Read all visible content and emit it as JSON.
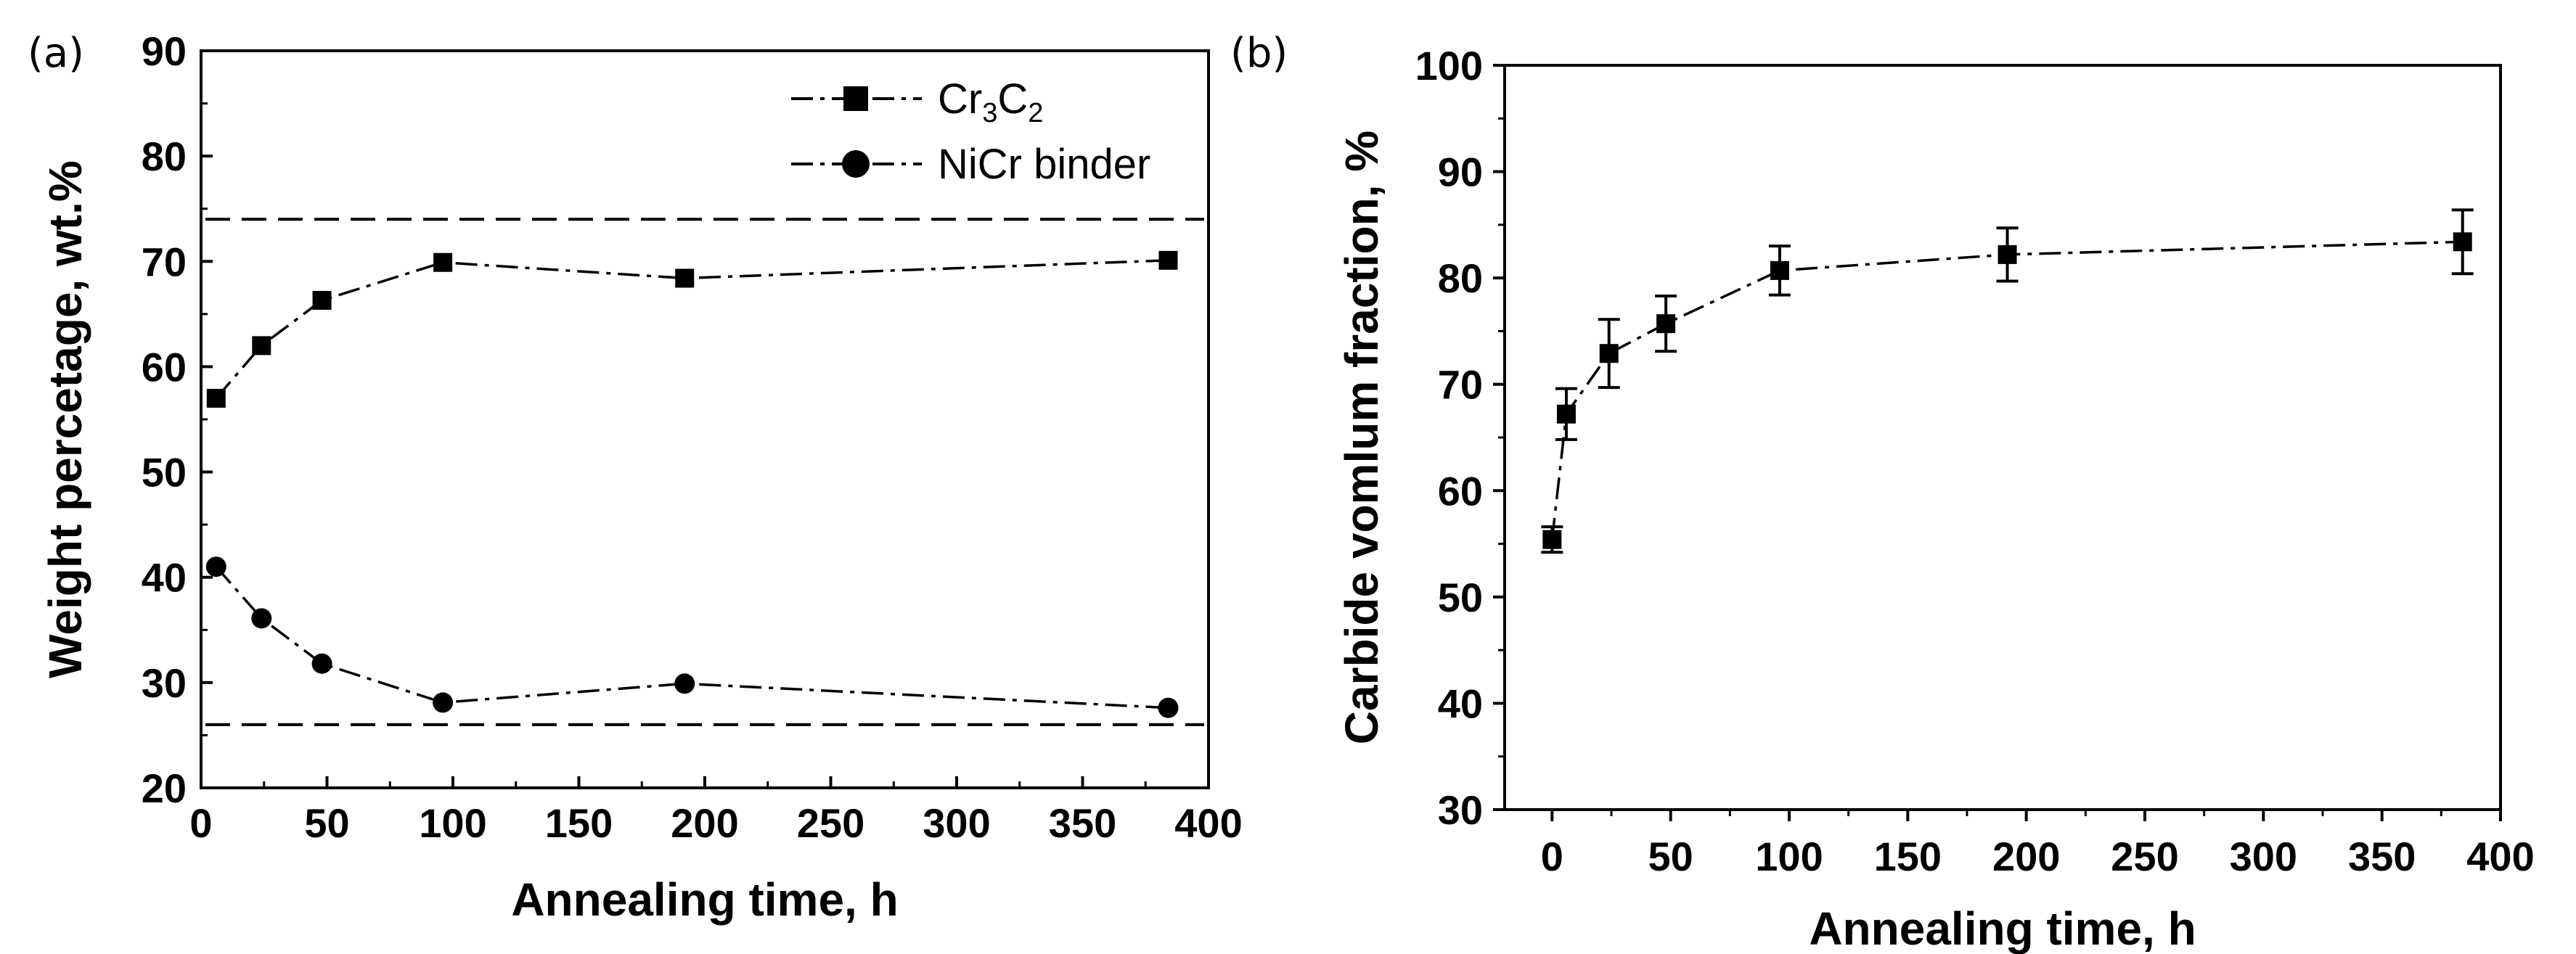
{
  "chart_data": [
    {
      "type": "line",
      "panel_label": "(a)",
      "title": "",
      "xlabel": "Annealing time, h",
      "ylabel": "Weight percetage, wt.%",
      "xlim": [
        0,
        400
      ],
      "ylim": [
        20,
        90
      ],
      "xticks": [
        0,
        50,
        100,
        150,
        200,
        250,
        300,
        350,
        400
      ],
      "yticks": [
        20,
        30,
        40,
        50,
        60,
        70,
        80,
        90
      ],
      "legend_position": "top-right",
      "series": [
        {
          "name": "Cr3C2",
          "legend_main": "Cr",
          "legend_sub1": "3",
          "legend_mid": "C",
          "legend_sub2": "2",
          "marker": "square",
          "line": "dash-dot",
          "x": [
            6,
            24,
            48,
            96,
            192,
            384
          ],
          "y": [
            57,
            62,
            66.3,
            69.9,
            68.4,
            70.1
          ]
        },
        {
          "name": "NiCr binder",
          "marker": "circle",
          "line": "dash-dot",
          "x": [
            6,
            24,
            48,
            96,
            192,
            384
          ],
          "y": [
            41,
            36.1,
            31.8,
            28.1,
            29.9,
            27.6
          ]
        }
      ],
      "reference_lines": [
        {
          "y": 74,
          "style": "dashed"
        },
        {
          "y": 26,
          "style": "dashed"
        }
      ]
    },
    {
      "type": "line",
      "panel_label": "(b)",
      "title": "",
      "xlabel": "Annealing time, h",
      "ylabel": "Carbide vomlum fraction, %",
      "xlim": [
        -20,
        400
      ],
      "ylim": [
        30,
        100
      ],
      "xticks": [
        0,
        50,
        100,
        150,
        200,
        250,
        300,
        350,
        400
      ],
      "yticks": [
        30,
        40,
        50,
        60,
        70,
        80,
        90,
        100
      ],
      "series": [
        {
          "name": "Carbide volume fraction",
          "marker": "square",
          "line": "dash-dot",
          "x": [
            0,
            6,
            24,
            48,
            96,
            192,
            384
          ],
          "y": [
            55.4,
            67.2,
            72.9,
            75.7,
            80.7,
            82.2,
            83.4
          ],
          "error": [
            1.2,
            2.4,
            3.2,
            2.6,
            2.3,
            2.5,
            3.0
          ]
        }
      ]
    }
  ]
}
